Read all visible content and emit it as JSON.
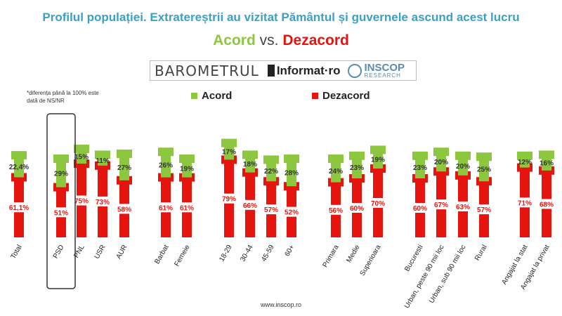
{
  "header": {
    "title": "Profilul populației. Extratereștrii au vizitat Pământul și guvernele ascund acest lucru",
    "subtitle_acord": "Acord",
    "subtitle_vs": "vs.",
    "subtitle_dezacord": "Dezacord"
  },
  "logos": {
    "barometrul": "BAROMETRUL",
    "informat": "Informat·ro",
    "inscop": "INSCOP",
    "inscop_sub": "RESEARCH"
  },
  "footnote": "*diferența până la 100% este dată de NS/NR",
  "footer": "www.inscop.ro",
  "colors": {
    "acord": "#8dc63f",
    "dezacord": "#e5140f",
    "title": "#3aa0c8"
  },
  "chart_data": {
    "type": "bar",
    "stacked": true,
    "legend_position": "top",
    "categories": [
      "Total",
      "PSD",
      "PNL",
      "USR",
      "AUR",
      "Barbat",
      "Femeie",
      "18-29",
      "30-44",
      "45-59",
      "60+",
      "Primara",
      "Medie",
      "Superioara",
      "Bucuresti",
      "Urban, peste 90 mii loc",
      "Urban, sub 90 mii loc",
      "Rural",
      "Angajat la stat",
      "Angajat la privat"
    ],
    "highlighted_category": "PSD",
    "series": [
      {
        "name": "Dezacord",
        "values": [
          61.1,
          51,
          75,
          73,
          58,
          61,
          61,
          79,
          66,
          57,
          52,
          56,
          60,
          70,
          60,
          67,
          63,
          57,
          71,
          68
        ],
        "labels": [
          "61,1%",
          "51%",
          "75%",
          "73%",
          "58%",
          "61%",
          "61%",
          "79%",
          "66%",
          "57%",
          "52%",
          "56%",
          "60%",
          "70%",
          "60%",
          "67%",
          "63%",
          "57%",
          "71%",
          "68%"
        ]
      },
      {
        "name": "Acord",
        "values": [
          22.4,
          29,
          15,
          11,
          27,
          26,
          19,
          17,
          18,
          22,
          28,
          24,
          23,
          19,
          23,
          20,
          20,
          25,
          12,
          16
        ],
        "labels": [
          "22,4%",
          "29%",
          "15%",
          "11%",
          "27%",
          "26%",
          "19%",
          "17%",
          "18%",
          "22%",
          "28%",
          "24%",
          "23%",
          "19%",
          "23%",
          "20%",
          "20%",
          "25%",
          "12%",
          "16%"
        ]
      }
    ]
  }
}
